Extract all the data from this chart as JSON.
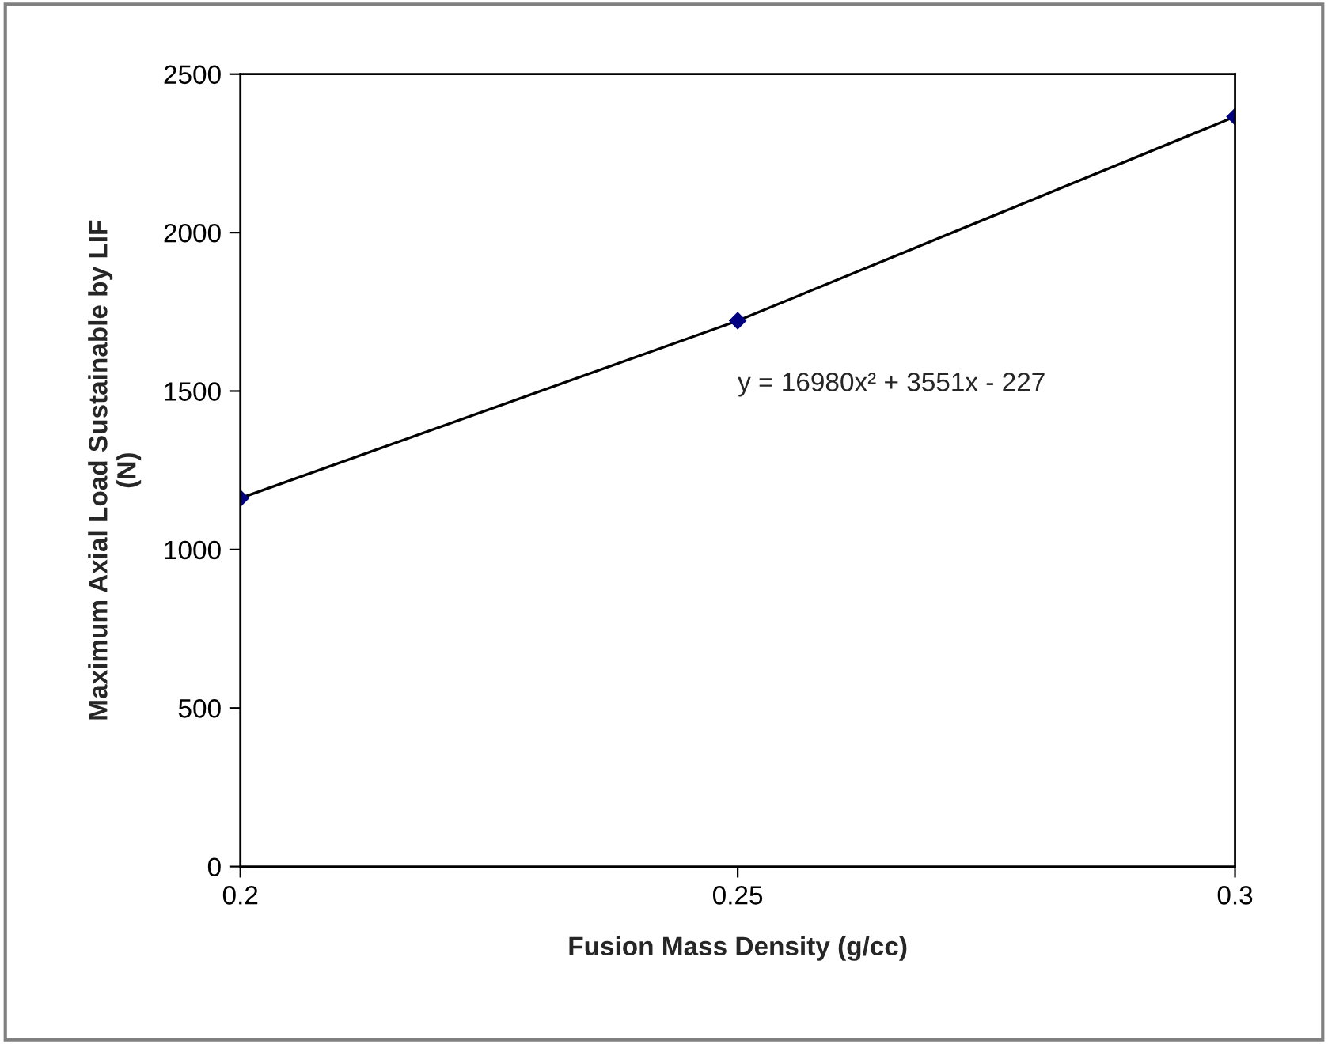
{
  "chart_data": {
    "type": "line",
    "xlabel": "Fusion Mass Density (g/cc)",
    "ylabel": "Maximum Axial Load Sustainable by LIF\n(N)",
    "x": [
      0.2,
      0.25,
      0.3
    ],
    "series": [
      {
        "color": "#000080",
        "values": [
          1162,
          1722,
          2366
        ]
      }
    ],
    "marker": "diamond",
    "line_style": "solid",
    "xlim": [
      0.2,
      0.3
    ],
    "xticks": [
      0.2,
      0.25,
      0.3
    ],
    "ylim": [
      0,
      2500
    ],
    "yticks": [
      0,
      500,
      1000,
      1500,
      2000,
      2500
    ],
    "annotations": [
      "y = 16980x² + 3551x - 227"
    ],
    "grid": false,
    "legend": false
  }
}
